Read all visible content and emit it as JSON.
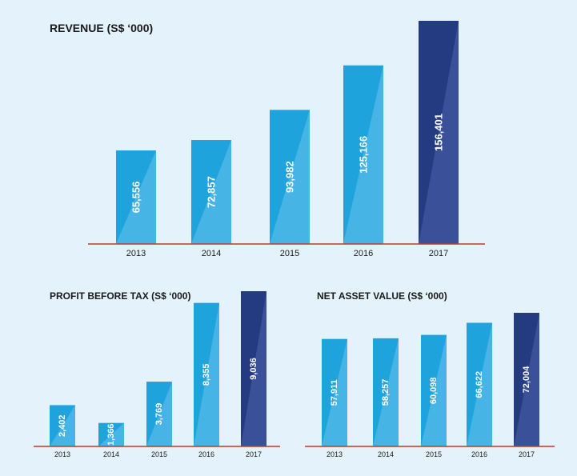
{
  "colors": {
    "background": "#e4f3fb",
    "bar_light": "#1fa3dd",
    "bar_light_shade": "#46b5e6",
    "bar_dark": "#243b82",
    "bar_dark_shade": "#3a5199",
    "baseline": "#c0392b"
  },
  "chart_data": [
    {
      "type": "bar",
      "title": "REVENUE (S$ ‘000)",
      "categories": [
        "2013",
        "2014",
        "2015",
        "2016",
        "2017"
      ],
      "values": [
        65556,
        72857,
        93982,
        125166,
        156401
      ],
      "value_labels": [
        "65,556",
        "72,857",
        "93,982",
        "125,166",
        "156,401"
      ],
      "highlight": "2017",
      "xlabel": "",
      "ylabel": "",
      "ylim": [
        0,
        156401
      ],
      "grid": false
    },
    {
      "type": "bar",
      "title": "PROFIT BEFORE TAX (S$ ‘000)",
      "categories": [
        "2013",
        "2014",
        "2015",
        "2016",
        "2017"
      ],
      "values": [
        2402,
        1366,
        3769,
        8355,
        9036
      ],
      "value_labels": [
        "2,402",
        "1,366",
        "3,769",
        "8,355",
        "9,036"
      ],
      "highlight": "2017",
      "xlabel": "",
      "ylabel": "",
      "ylim": [
        0,
        9036
      ],
      "grid": false
    },
    {
      "type": "bar",
      "title": "NET ASSET VALUE (S$ ‘000)",
      "categories": [
        "2013",
        "2014",
        "2015",
        "2016",
        "2017"
      ],
      "values": [
        57911,
        58257,
        60098,
        66622,
        72004
      ],
      "value_labels": [
        "57,911",
        "58,257",
        "60,098",
        "66,622",
        "72,004"
      ],
      "highlight": "2017",
      "xlabel": "",
      "ylabel": "",
      "ylim": [
        0,
        72004
      ],
      "grid": false
    }
  ]
}
